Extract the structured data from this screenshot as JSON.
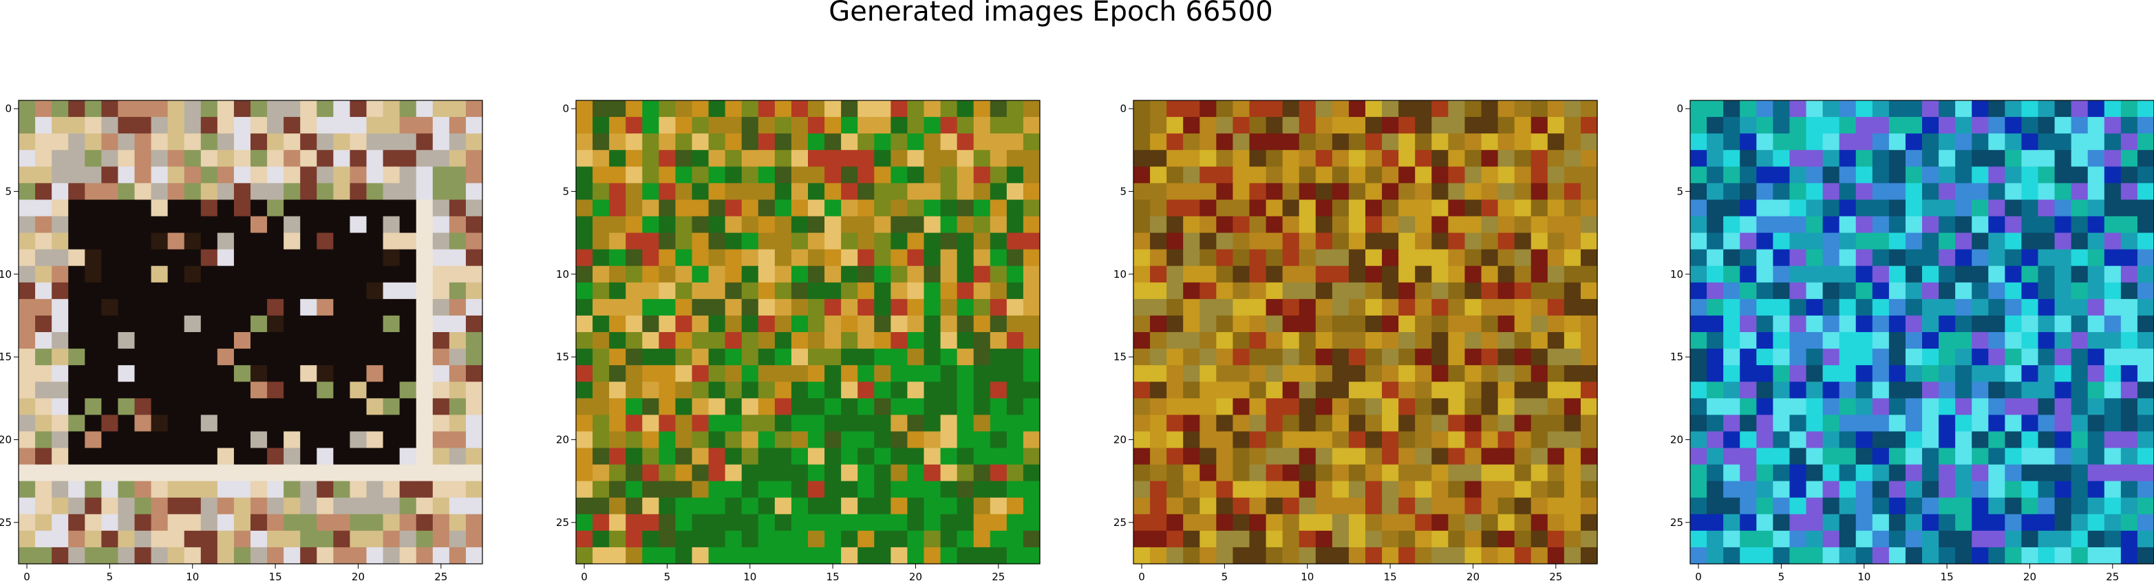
{
  "figure": {
    "title": "Generated images Epoch 66500"
  },
  "chart_data": [
    {
      "type": "heatmap",
      "style": "rgb-image",
      "palette": [
        "#2c1a0f",
        "#e9d3b0",
        "#c28a6a",
        "#7a3a2c",
        "#d6c088",
        "#b8b0a4",
        "#8a9a5a",
        "#e2e0e8"
      ],
      "base": "#b89a6c",
      "grid": [
        28,
        28
      ],
      "xticks": [
        0,
        5,
        10,
        15,
        20,
        25
      ],
      "yticks": [
        0,
        5,
        10,
        15,
        20,
        25
      ],
      "xlim": [
        -0.5,
        27.5
      ],
      "ylim": [
        27.5,
        -0.5
      ]
    },
    {
      "type": "heatmap",
      "style": "rgb-image",
      "palette": [
        "#c9901c",
        "#a8831a",
        "#7a8a1c",
        "#d4a43a",
        "#1a6e1a",
        "#0f9a24",
        "#3f5a1a",
        "#e8c26a",
        "#b43a24"
      ],
      "base": "#b08a24",
      "grid": [
        28,
        28
      ],
      "xticks": [
        0,
        5,
        10,
        15,
        20,
        25
      ],
      "yticks": [
        0,
        5,
        10,
        15,
        20,
        25
      ],
      "xlim": [
        -0.5,
        27.5
      ],
      "ylim": [
        27.5,
        -0.5
      ]
    },
    {
      "type": "heatmap",
      "style": "rgb-image",
      "palette": [
        "#b8861c",
        "#a07a1a",
        "#8a6a14",
        "#c6981e",
        "#7a1a10",
        "#d4b428",
        "#5a3a10",
        "#a83a18",
        "#9a8a3a"
      ],
      "base": "#a8801c",
      "grid": [
        28,
        28
      ],
      "xticks": [
        0,
        5,
        10,
        15,
        20,
        25
      ],
      "yticks": [
        0,
        5,
        10,
        15,
        20,
        25
      ],
      "xlim": [
        -0.5,
        27.5
      ],
      "ylim": [
        27.5,
        -0.5
      ]
    },
    {
      "type": "heatmap",
      "style": "rgb-image",
      "palette": [
        "#1aa0b4",
        "#0a6a8a",
        "#22d8dc",
        "#3a8ad8",
        "#0a2ab4",
        "#14b8a0",
        "#5ae4ec",
        "#0a4a6a",
        "#7a5ad8"
      ],
      "base": "#18a4c0",
      "grid": [
        28,
        28
      ],
      "xticks": [
        0,
        5,
        10,
        15,
        20,
        25
      ],
      "yticks": [
        0,
        5,
        10,
        15,
        20,
        25
      ],
      "xlim": [
        -0.5,
        27.5
      ],
      "ylim": [
        27.5,
        -0.5
      ]
    }
  ]
}
